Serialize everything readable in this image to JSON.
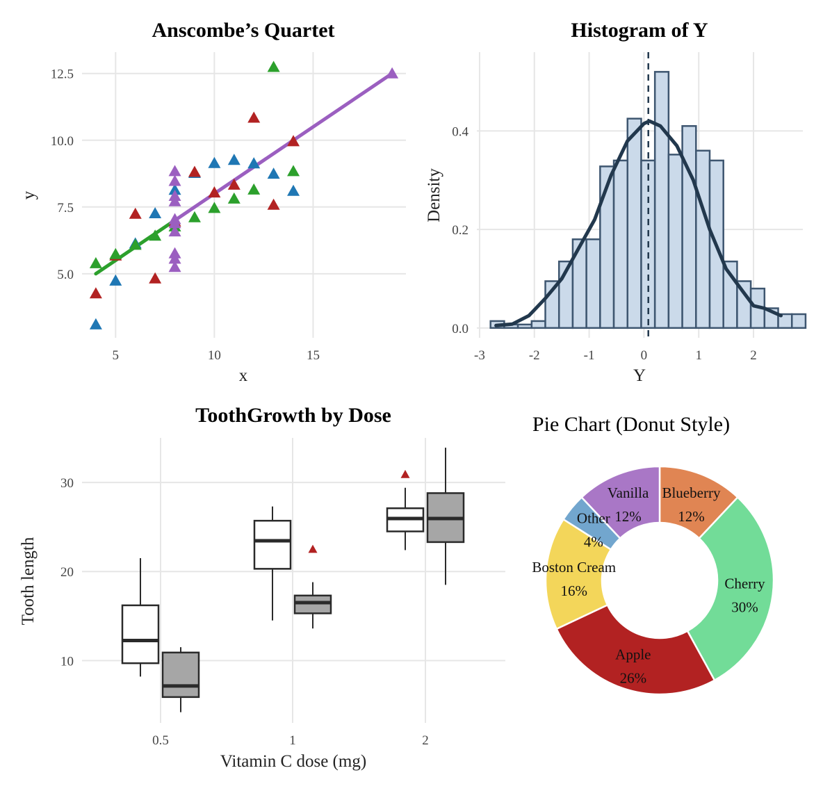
{
  "chart_data": [
    {
      "type": "scatter",
      "title": "Anscombe’s Quartet",
      "xlabel": "x",
      "ylabel": "y",
      "xlim": [
        3.3,
        19.7
      ],
      "ylim": [
        2.6,
        13.3
      ],
      "xticks": [
        5,
        10,
        15
      ],
      "yticks": [
        5.0,
        7.5,
        10.0,
        12.5
      ],
      "ytick_labels": [
        "5.0",
        "7.5",
        "10.0",
        "12.5"
      ],
      "grid": true,
      "series": [
        {
          "color": "#1F77B4",
          "points": [
            [
              10,
              9.14
            ],
            [
              8,
              8.14
            ],
            [
              13,
              8.74
            ],
            [
              9,
              8.77
            ],
            [
              11,
              9.26
            ],
            [
              14,
              8.1
            ],
            [
              6,
              6.13
            ],
            [
              4,
              3.1
            ],
            [
              12,
              9.13
            ],
            [
              7,
              7.26
            ],
            [
              5,
              4.74
            ]
          ]
        },
        {
          "color": "#B22222",
          "points": [
            [
              10,
              8.04
            ],
            [
              8,
              6.95
            ],
            [
              13,
              7.58
            ],
            [
              9,
              8.81
            ],
            [
              11,
              8.33
            ],
            [
              14,
              9.96
            ],
            [
              6,
              7.24
            ],
            [
              4,
              4.26
            ],
            [
              12,
              10.84
            ],
            [
              7,
              4.82
            ],
            [
              5,
              5.68
            ]
          ]
        },
        {
          "color": "#2CA02C",
          "points": [
            [
              10,
              7.46
            ],
            [
              8,
              6.77
            ],
            [
              13,
              12.74
            ],
            [
              9,
              7.11
            ],
            [
              11,
              7.81
            ],
            [
              14,
              8.84
            ],
            [
              6,
              6.08
            ],
            [
              4,
              5.39
            ],
            [
              12,
              8.15
            ],
            [
              7,
              6.42
            ],
            [
              5,
              5.73
            ]
          ]
        },
        {
          "color": "#9B5FC0",
          "points": [
            [
              8,
              6.58
            ],
            [
              8,
              5.76
            ],
            [
              8,
              7.71
            ],
            [
              8,
              8.84
            ],
            [
              8,
              8.47
            ],
            [
              8,
              7.04
            ],
            [
              8,
              5.25
            ],
            [
              19,
              12.5
            ],
            [
              8,
              5.56
            ],
            [
              8,
              7.91
            ],
            [
              8,
              6.89
            ]
          ]
        }
      ],
      "fit_lines": [
        {
          "color": "#2CA02C",
          "from": [
            4,
            5.0
          ],
          "to": [
            8,
            7.0
          ]
        },
        {
          "color": "#9B5FC0",
          "from": [
            8,
            7.0
          ],
          "to": [
            19,
            12.5
          ]
        }
      ]
    },
    {
      "type": "histogram",
      "title": "Histogram of Y",
      "xlabel": "Y",
      "ylabel": "Density",
      "xlim": [
        -3.05,
        2.9
      ],
      "ylim": [
        -0.02,
        0.56
      ],
      "xticks": [
        -3,
        -2,
        -1,
        0,
        1,
        2
      ],
      "yticks": [
        0.0,
        0.2,
        0.4
      ],
      "ytick_labels": [
        "0.0",
        "0.2",
        "0.4"
      ],
      "bin_start": -2.8,
      "bin_width": 0.25,
      "densities": [
        0.014,
        0.007,
        0.007,
        0.014,
        0.095,
        0.135,
        0.18,
        0.18,
        0.328,
        0.34,
        0.425,
        0.34,
        0.52,
        0.352,
        0.41,
        0.36,
        0.34,
        0.135,
        0.095,
        0.08,
        0.04,
        0.028,
        0.028
      ],
      "mean_line": 0.08,
      "density_curve": [
        [
          -2.7,
          0.005
        ],
        [
          -2.4,
          0.008
        ],
        [
          -2.1,
          0.025
        ],
        [
          -1.8,
          0.06
        ],
        [
          -1.5,
          0.1
        ],
        [
          -1.2,
          0.16
        ],
        [
          -0.9,
          0.22
        ],
        [
          -0.6,
          0.31
        ],
        [
          -0.3,
          0.38
        ],
        [
          0.0,
          0.415
        ],
        [
          0.1,
          0.42
        ],
        [
          0.3,
          0.41
        ],
        [
          0.6,
          0.37
        ],
        [
          0.9,
          0.3
        ],
        [
          1.2,
          0.2
        ],
        [
          1.5,
          0.12
        ],
        [
          1.8,
          0.075
        ],
        [
          2.0,
          0.045
        ],
        [
          2.2,
          0.04
        ],
        [
          2.4,
          0.03
        ],
        [
          2.5,
          0.025
        ]
      ],
      "fill_color": "#CBDAEA",
      "edge_color": "#3E5670",
      "curve_color": "#22384D",
      "grid": true
    },
    {
      "type": "box",
      "title": "ToothGrowth by Dose",
      "xlabel": "Vitamin C dose (mg)",
      "ylabel": "Tooth length",
      "ylim": [
        3,
        35
      ],
      "yticks": [
        10,
        20,
        30
      ],
      "categories": [
        "0.5",
        "1",
        "2"
      ],
      "groups": [
        {
          "fill": "#ffffff",
          "boxes": [
            {
              "category": "0.5",
              "min": 8.2,
              "q1": 9.7,
              "median": 12.25,
              "q3": 16.2,
              "max": 21.5,
              "outliers": []
            },
            {
              "category": "1",
              "min": 14.5,
              "q1": 20.3,
              "median": 23.45,
              "q3": 25.7,
              "max": 27.3,
              "outliers": []
            },
            {
              "category": "2",
              "min": 22.4,
              "q1": 24.5,
              "median": 25.95,
              "q3": 27.1,
              "max": 29.4,
              "outliers": [
                30.9
              ]
            }
          ]
        },
        {
          "fill": "#A6A6A6",
          "boxes": [
            {
              "category": "0.5",
              "min": 4.2,
              "q1": 5.9,
              "median": 7.15,
              "q3": 10.9,
              "max": 11.5,
              "outliers": []
            },
            {
              "category": "1",
              "min": 13.6,
              "q1": 15.3,
              "median": 16.5,
              "q3": 17.3,
              "max": 18.8,
              "outliers": [
                22.5
              ]
            },
            {
              "category": "2",
              "min": 18.5,
              "q1": 23.3,
              "median": 25.95,
              "q3": 28.8,
              "max": 33.9,
              "outliers": []
            }
          ]
        }
      ],
      "outlier_color": "#B22222",
      "grid": true
    },
    {
      "type": "pie",
      "title": "Pie Chart (Donut Style)",
      "donut": true,
      "slices": [
        {
          "label": "Blueberry",
          "percent_label": "12%",
          "value": 12,
          "color": "#E08553"
        },
        {
          "label": "Cherry",
          "percent_label": "30%",
          "value": 30,
          "color": "#72DC98"
        },
        {
          "label": "Apple",
          "percent_label": "26%",
          "value": 26,
          "color": "#B22222"
        },
        {
          "label": "Boston Cream",
          "percent_label": "16%",
          "value": 16,
          "color": "#F3D65A"
        },
        {
          "label": "Other",
          "percent_label": "4%",
          "value": 4,
          "color": "#72A6CE"
        },
        {
          "label": "Vanilla",
          "percent_label": "12%",
          "value": 12,
          "color": "#A977C6"
        }
      ]
    }
  ]
}
